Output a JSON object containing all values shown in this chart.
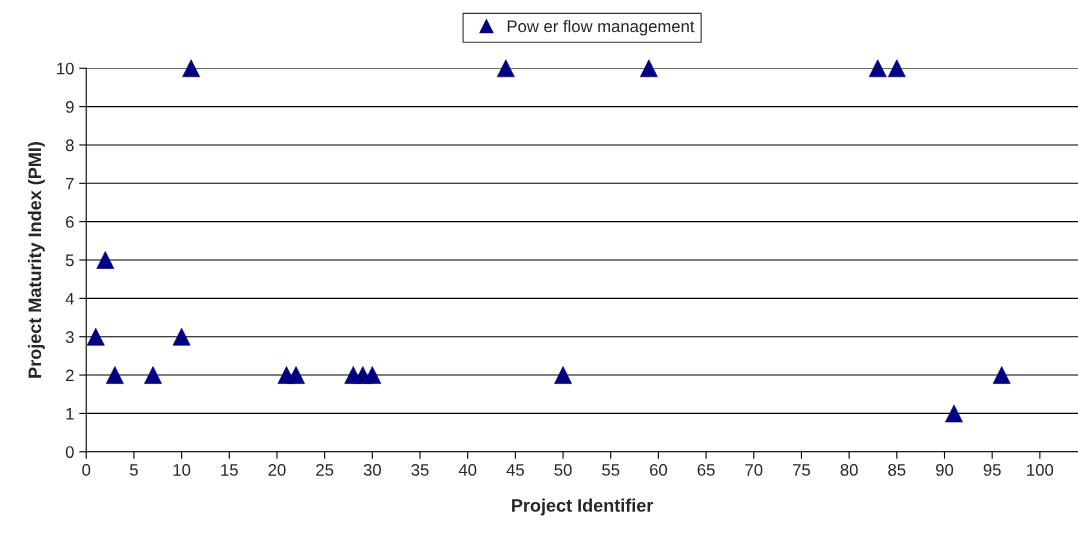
{
  "chart_data": {
    "type": "scatter",
    "xlabel": "Project Identifier",
    "ylabel": "Project Maturity Index (PMI)",
    "series": [
      {
        "name": "Pow er flow management",
        "color": "#000080",
        "marker": "triangle",
        "x": [
          1,
          2,
          3,
          7,
          10,
          11,
          21,
          22,
          28,
          29,
          30,
          44,
          50,
          59,
          83,
          85,
          91,
          96
        ],
        "values": [
          3,
          5,
          2,
          2,
          3,
          10,
          2,
          2,
          2,
          2,
          2,
          10,
          2,
          10,
          10,
          10,
          1,
          2
        ]
      }
    ],
    "xlim": [
      0,
      104
    ],
    "xticks": [
      0,
      5,
      10,
      15,
      20,
      25,
      30,
      35,
      40,
      45,
      50,
      55,
      60,
      65,
      70,
      75,
      80,
      85,
      90,
      95,
      100
    ],
    "ylim": [
      0,
      10
    ],
    "yticks": [
      0,
      1,
      2,
      3,
      4,
      5,
      6,
      7,
      8,
      9,
      10
    ],
    "grid": "y",
    "legend": "top"
  }
}
